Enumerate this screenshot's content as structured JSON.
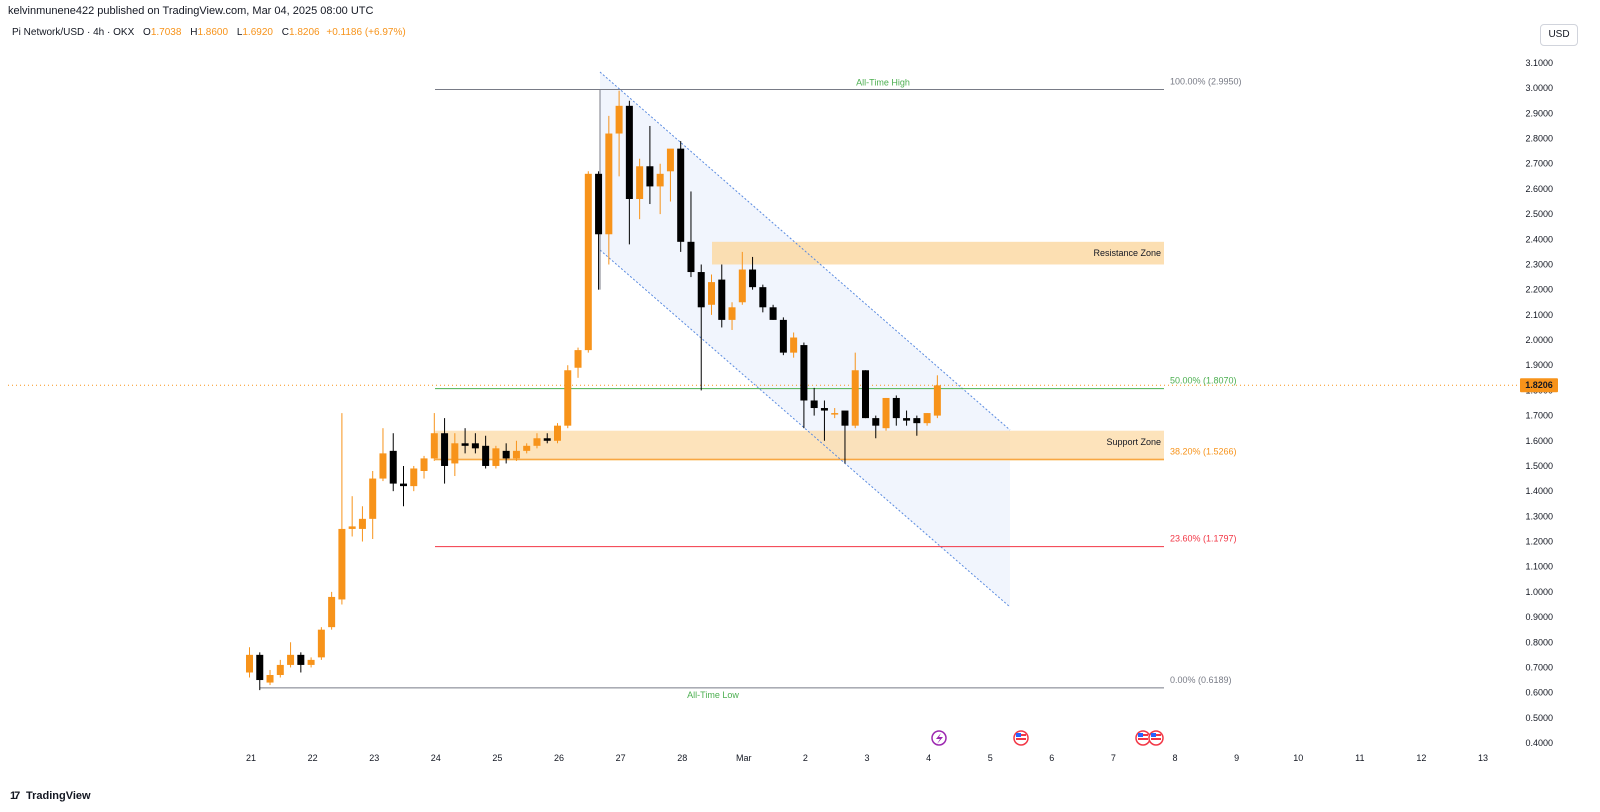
{
  "publisher": "kelvinmunene422 published on TradingView.com, Mar 04, 2025 08:00 UTC",
  "symbol": {
    "name": "Pi Network/USD · 4h · OKX",
    "o_label": "O",
    "o": "1.7038",
    "h_label": "H",
    "h": "1.8600",
    "l_label": "L",
    "l": "1.6920",
    "c_label": "C",
    "c": "1.8206",
    "change": "+0.1186 (+6.97%)"
  },
  "currency": "USD",
  "last_price_label": "1.8206",
  "brand": "TradingView",
  "colors": {
    "up": "#f7931a",
    "down": "#000000",
    "channel_fill": "#eef3fd",
    "channel_line": "#5a8be0",
    "zone_fill": "#fcd9a4",
    "fib_green": "#4caf50",
    "fib_orange": "#f7931a",
    "fib_red": "#f23645",
    "fib_gray": "#787b86"
  },
  "chart_data": {
    "type": "candlestick",
    "timeframe": "4h",
    "x_ticks": [
      "21",
      "22",
      "23",
      "24",
      "25",
      "26",
      "27",
      "28",
      "Mar",
      "2",
      "3",
      "4",
      "5",
      "6",
      "7",
      "8",
      "9",
      "10",
      "11",
      "12",
      "13"
    ],
    "y_ticks": [
      "0.4000",
      "0.5000",
      "0.6000",
      "0.7000",
      "0.8000",
      "0.9000",
      "1.0000",
      "1.1000",
      "1.2000",
      "1.3000",
      "1.4000",
      "1.5000",
      "1.6000",
      "1.7000",
      "1.8000",
      "1.9000",
      "2.0000",
      "2.1000",
      "2.2000",
      "2.3000",
      "2.4000",
      "2.5000",
      "2.6000",
      "2.7000",
      "2.8000",
      "2.9000",
      "3.0000",
      "3.1000"
    ],
    "y_range": [
      0.4,
      3.1
    ],
    "last_price": 1.8206,
    "candles": [
      {
        "o": 0.68,
        "h": 0.78,
        "l": 0.66,
        "c": 0.75
      },
      {
        "o": 0.75,
        "h": 0.76,
        "l": 0.61,
        "c": 0.65
      },
      {
        "o": 0.64,
        "h": 0.69,
        "l": 0.63,
        "c": 0.67
      },
      {
        "o": 0.67,
        "h": 0.73,
        "l": 0.66,
        "c": 0.71
      },
      {
        "o": 0.71,
        "h": 0.8,
        "l": 0.7,
        "c": 0.75
      },
      {
        "o": 0.75,
        "h": 0.76,
        "l": 0.68,
        "c": 0.71
      },
      {
        "o": 0.71,
        "h": 0.74,
        "l": 0.7,
        "c": 0.73
      },
      {
        "o": 0.74,
        "h": 0.86,
        "l": 0.73,
        "c": 0.85
      },
      {
        "o": 0.86,
        "h": 1.0,
        "l": 0.85,
        "c": 0.98
      },
      {
        "o": 0.97,
        "h": 1.71,
        "l": 0.95,
        "c": 1.25
      },
      {
        "o": 1.25,
        "h": 1.38,
        "l": 1.22,
        "c": 1.26
      },
      {
        "o": 1.25,
        "h": 1.34,
        "l": 1.2,
        "c": 1.29
      },
      {
        "o": 1.29,
        "h": 1.48,
        "l": 1.21,
        "c": 1.45
      },
      {
        "o": 1.45,
        "h": 1.65,
        "l": 1.44,
        "c": 1.55
      },
      {
        "o": 1.56,
        "h": 1.63,
        "l": 1.4,
        "c": 1.43
      },
      {
        "o": 1.43,
        "h": 1.5,
        "l": 1.34,
        "c": 1.42
      },
      {
        "o": 1.42,
        "h": 1.5,
        "l": 1.4,
        "c": 1.49
      },
      {
        "o": 1.48,
        "h": 1.54,
        "l": 1.45,
        "c": 1.53
      },
      {
        "o": 1.53,
        "h": 1.71,
        "l": 1.52,
        "c": 1.63
      },
      {
        "o": 1.63,
        "h": 1.69,
        "l": 1.43,
        "c": 1.5
      },
      {
        "o": 1.51,
        "h": 1.63,
        "l": 1.46,
        "c": 1.59
      },
      {
        "o": 1.59,
        "h": 1.65,
        "l": 1.55,
        "c": 1.58
      },
      {
        "o": 1.59,
        "h": 1.63,
        "l": 1.55,
        "c": 1.57
      },
      {
        "o": 1.58,
        "h": 1.62,
        "l": 1.49,
        "c": 1.5
      },
      {
        "o": 1.5,
        "h": 1.58,
        "l": 1.49,
        "c": 1.57
      },
      {
        "o": 1.56,
        "h": 1.59,
        "l": 1.51,
        "c": 1.53
      },
      {
        "o": 1.53,
        "h": 1.6,
        "l": 1.52,
        "c": 1.56
      },
      {
        "o": 1.56,
        "h": 1.59,
        "l": 1.55,
        "c": 1.58
      },
      {
        "o": 1.58,
        "h": 1.63,
        "l": 1.57,
        "c": 1.61
      },
      {
        "o": 1.61,
        "h": 1.63,
        "l": 1.59,
        "c": 1.6
      },
      {
        "o": 1.6,
        "h": 1.67,
        "l": 1.59,
        "c": 1.66
      },
      {
        "o": 1.66,
        "h": 1.9,
        "l": 1.65,
        "c": 1.88
      },
      {
        "o": 1.89,
        "h": 1.97,
        "l": 1.85,
        "c": 1.96
      },
      {
        "o": 1.96,
        "h": 2.67,
        "l": 1.95,
        "c": 2.66
      },
      {
        "o": 2.66,
        "h": 2.67,
        "l": 2.2,
        "c": 2.42
      },
      {
        "o": 2.42,
        "h": 2.89,
        "l": 2.3,
        "c": 2.82
      },
      {
        "o": 2.82,
        "h": 2.99,
        "l": 2.65,
        "c": 2.93
      },
      {
        "o": 2.93,
        "h": 2.95,
        "l": 2.38,
        "c": 2.56
      },
      {
        "o": 2.56,
        "h": 2.72,
        "l": 2.48,
        "c": 2.69
      },
      {
        "o": 2.69,
        "h": 2.85,
        "l": 2.54,
        "c": 2.61
      },
      {
        "o": 2.61,
        "h": 2.7,
        "l": 2.5,
        "c": 2.66
      },
      {
        "o": 2.67,
        "h": 2.75,
        "l": 2.55,
        "c": 2.76
      },
      {
        "o": 2.76,
        "h": 2.79,
        "l": 2.35,
        "c": 2.39
      },
      {
        "o": 2.39,
        "h": 2.59,
        "l": 2.25,
        "c": 2.27
      },
      {
        "o": 2.27,
        "h": 2.3,
        "l": 1.8,
        "c": 2.13
      },
      {
        "o": 2.14,
        "h": 2.26,
        "l": 2.1,
        "c": 2.23
      },
      {
        "o": 2.24,
        "h": 2.3,
        "l": 2.05,
        "c": 2.08
      },
      {
        "o": 2.08,
        "h": 2.15,
        "l": 2.04,
        "c": 2.13
      },
      {
        "o": 2.15,
        "h": 2.35,
        "l": 2.14,
        "c": 2.28
      },
      {
        "o": 2.28,
        "h": 2.33,
        "l": 2.2,
        "c": 2.21
      },
      {
        "o": 2.21,
        "h": 2.22,
        "l": 2.11,
        "c": 2.13
      },
      {
        "o": 2.13,
        "h": 2.14,
        "l": 2.08,
        "c": 2.08
      },
      {
        "o": 2.08,
        "h": 2.09,
        "l": 1.94,
        "c": 1.95
      },
      {
        "o": 1.95,
        "h": 2.03,
        "l": 1.93,
        "c": 2.01
      },
      {
        "o": 1.98,
        "h": 1.99,
        "l": 1.65,
        "c": 1.76
      },
      {
        "o": 1.76,
        "h": 1.81,
        "l": 1.7,
        "c": 1.73
      },
      {
        "o": 1.73,
        "h": 1.76,
        "l": 1.6,
        "c": 1.72
      },
      {
        "o": 1.71,
        "h": 1.73,
        "l": 1.69,
        "c": 1.71
      },
      {
        "o": 1.72,
        "h": 1.71,
        "l": 1.51,
        "c": 1.66
      },
      {
        "o": 1.66,
        "h": 1.95,
        "l": 1.65,
        "c": 1.88
      },
      {
        "o": 1.88,
        "h": 1.88,
        "l": 1.69,
        "c": 1.69
      },
      {
        "o": 1.69,
        "h": 1.7,
        "l": 1.61,
        "c": 1.66
      },
      {
        "o": 1.65,
        "h": 1.77,
        "l": 1.64,
        "c": 1.77
      },
      {
        "o": 1.77,
        "h": 1.78,
        "l": 1.66,
        "c": 1.69
      },
      {
        "o": 1.69,
        "h": 1.72,
        "l": 1.66,
        "c": 1.68
      },
      {
        "o": 1.69,
        "h": 1.7,
        "l": 1.62,
        "c": 1.67
      },
      {
        "o": 1.67,
        "h": 1.71,
        "l": 1.66,
        "c": 1.71
      },
      {
        "o": 1.7,
        "h": 1.86,
        "l": 1.69,
        "c": 1.82
      }
    ],
    "fib_levels": [
      {
        "label": "100.00% (2.9950)",
        "price": 2.995,
        "color": "#787b86"
      },
      {
        "label": "50.00% (1.8070)",
        "price": 1.807,
        "color": "#4caf50"
      },
      {
        "label": "38.20% (1.5266)",
        "price": 1.5266,
        "color": "#f7931a"
      },
      {
        "label": "23.60% (1.1797)",
        "price": 1.1797,
        "color": "#f23645"
      },
      {
        "label": "0.00% (0.6189)",
        "price": 0.6189,
        "color": "#787b86"
      }
    ],
    "annotations": {
      "all_time_high": "All-Time High",
      "all_time_low": "All-Time Low",
      "resistance_zone": "Resistance Zone",
      "support_zone": "Support Zone"
    },
    "zones": {
      "resistance": [
        2.3,
        2.39
      ],
      "support": [
        1.52,
        1.64
      ]
    }
  }
}
